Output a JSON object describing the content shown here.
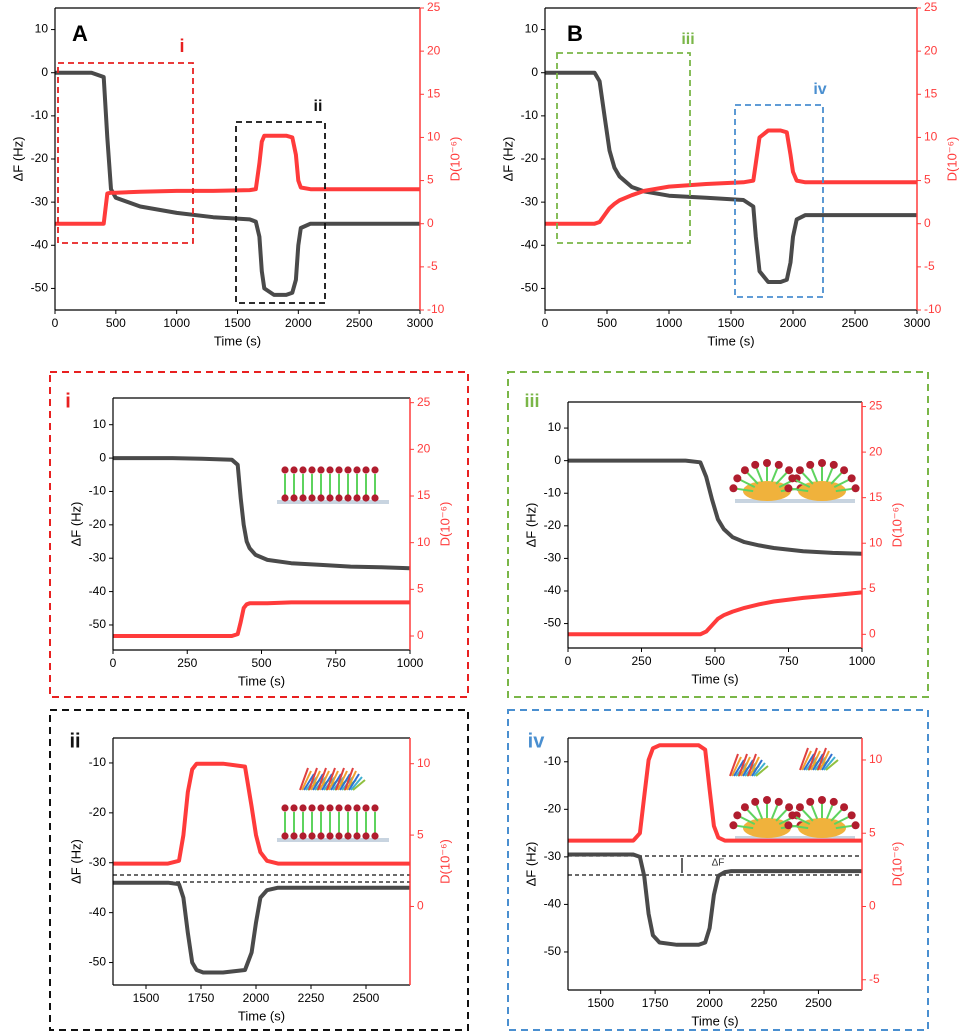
{
  "chart_data": [
    {
      "type": "line",
      "xlabel": "Time (s)",
      "ylabel": "ΔF (Hz)",
      "y2label": "D(10⁻⁶)",
      "x": [
        0,
        100,
        200,
        300,
        400,
        430,
        460,
        500,
        700,
        1000,
        1300,
        1600,
        1650,
        1680,
        1700,
        1720,
        1800,
        1900,
        1950,
        1980,
        2000,
        2020,
        2100,
        2500,
        3000
      ],
      "series": [
        {
          "color": "#4a4a4a",
          "values": [
            0,
            0,
            0,
            0,
            -1,
            -15,
            -27,
            -29,
            -31,
            -32.5,
            -33.5,
            -34,
            -34.5,
            -38,
            -46,
            -50,
            -51.5,
            -51.5,
            -51,
            -48,
            -40,
            -36,
            -35,
            -35,
            -35
          ]
        },
        {
          "color": "#ff3b3b",
          "axis": "y2",
          "values": [
            0,
            0,
            0,
            0,
            0,
            3.5,
            3.6,
            3.6,
            3.7,
            3.8,
            3.8,
            3.9,
            4,
            7,
            9.5,
            10.2,
            10.2,
            10.2,
            10,
            8,
            5,
            4.2,
            4,
            4,
            4
          ]
        }
      ],
      "xlim": [
        0,
        3000
      ],
      "ylim": [
        -55,
        15
      ],
      "y2lim": [
        -10,
        25
      ],
      "xticks": [
        0,
        500,
        1000,
        1500,
        2000,
        2500,
        3000
      ],
      "yticks": [
        -50,
        -40,
        -30,
        -20,
        -10,
        0,
        10
      ],
      "y2ticks": [
        -10,
        -5,
        0,
        5,
        10,
        15,
        20,
        25
      ],
      "annotations": [
        {
          "text": "A",
          "color": "#000000"
        },
        {
          "text": "i",
          "color": "#e82020"
        },
        {
          "text": "ii",
          "color": "#111111"
        }
      ]
    },
    {
      "type": "line",
      "xlabel": "Time (s)",
      "ylabel": "ΔF (Hz)",
      "y2label": "D(10⁻⁶)",
      "x": [
        0,
        100,
        200,
        300,
        400,
        440,
        480,
        520,
        560,
        600,
        700,
        800,
        1000,
        1300,
        1600,
        1680,
        1700,
        1730,
        1800,
        1900,
        1950,
        1980,
        2000,
        2030,
        2100,
        2500,
        3000
      ],
      "series": [
        {
          "color": "#4a4a4a",
          "values": [
            0,
            0,
            0,
            0,
            0,
            -2,
            -10,
            -18,
            -22,
            -24,
            -26.5,
            -27.5,
            -28.5,
            -29,
            -29.5,
            -31,
            -38,
            -46,
            -48.5,
            -48.5,
            -48,
            -44,
            -38,
            -34,
            -33,
            -33,
            -33
          ]
        },
        {
          "color": "#ff3b3b",
          "axis": "y2",
          "values": [
            0,
            0,
            0,
            0,
            0,
            0.2,
            1,
            1.8,
            2.3,
            2.7,
            3.3,
            3.8,
            4.3,
            4.6,
            4.8,
            5,
            7,
            10,
            10.8,
            10.8,
            10.6,
            8,
            6,
            5,
            4.8,
            4.8,
            4.8
          ]
        }
      ],
      "xlim": [
        0,
        3000
      ],
      "ylim": [
        -55,
        15
      ],
      "y2lim": [
        -10,
        25
      ],
      "xticks": [
        0,
        500,
        1000,
        1500,
        2000,
        2500,
        3000
      ],
      "yticks": [
        -50,
        -40,
        -30,
        -20,
        -10,
        0,
        10
      ],
      "y2ticks": [
        -10,
        -5,
        0,
        5,
        10,
        15,
        20,
        25
      ],
      "annotations": [
        {
          "text": "B",
          "color": "#000000"
        },
        {
          "text": "iii",
          "color": "#7ab648"
        },
        {
          "text": "iv",
          "color": "#4a8fd0"
        }
      ]
    },
    {
      "type": "line",
      "xlabel": "Time (s)",
      "ylabel": "ΔF (Hz)",
      "y2label": "D(10⁻⁶)",
      "x": [
        0,
        100,
        200,
        300,
        400,
        420,
        430,
        440,
        450,
        460,
        480,
        520,
        600,
        700,
        800,
        900,
        1000
      ],
      "series": [
        {
          "color": "#4a4a4a",
          "values": [
            0,
            0,
            0,
            -0.2,
            -0.5,
            -2,
            -12,
            -20,
            -25,
            -27,
            -29,
            -30.5,
            -31.5,
            -32,
            -32.5,
            -32.7,
            -33
          ]
        },
        {
          "color": "#ff3b3b",
          "axis": "y2",
          "values": [
            0,
            0,
            0,
            0,
            0,
            0.2,
            1.5,
            3,
            3.4,
            3.5,
            3.5,
            3.5,
            3.6,
            3.6,
            3.6,
            3.6,
            3.6
          ]
        }
      ],
      "xlim": [
        0,
        1000
      ],
      "ylim": [
        -57.5,
        18
      ],
      "y2lim": [
        -1.5,
        25.5
      ],
      "xticks": [
        0,
        250,
        500,
        750,
        1000
      ],
      "yticks": [
        -50,
        -40,
        -30,
        -20,
        -10,
        0,
        10
      ],
      "y2ticks": [
        0,
        5,
        10,
        15,
        20,
        25
      ],
      "annotations": [
        {
          "text": "i",
          "color": "#e82020"
        }
      ]
    },
    {
      "type": "line",
      "xlabel": "Time (s)",
      "ylabel": "ΔF (Hz)",
      "y2label": "D(10⁻⁶)",
      "x": [
        0,
        100,
        200,
        300,
        400,
        450,
        470,
        490,
        510,
        530,
        560,
        600,
        650,
        700,
        800,
        900,
        1000
      ],
      "series": [
        {
          "color": "#4a4a4a",
          "values": [
            0,
            0,
            0,
            0,
            0,
            -0.5,
            -5,
            -12,
            -18,
            -21,
            -23.5,
            -25,
            -26,
            -26.8,
            -27.8,
            -28.3,
            -28.6
          ]
        },
        {
          "color": "#ff3b3b",
          "axis": "y2",
          "values": [
            0,
            0,
            0,
            0,
            0,
            0,
            0.3,
            1,
            1.7,
            2.1,
            2.5,
            2.9,
            3.3,
            3.6,
            4,
            4.3,
            4.6
          ]
        }
      ],
      "xlim": [
        0,
        1000
      ],
      "ylim": [
        -57.5,
        18
      ],
      "y2lim": [
        -1.5,
        25.5
      ],
      "xticks": [
        0,
        250,
        500,
        750,
        1000
      ],
      "yticks": [
        -50,
        -40,
        -30,
        -20,
        -10,
        0,
        10
      ],
      "y2ticks": [
        0,
        5,
        10,
        15,
        20,
        25
      ],
      "annotations": [
        {
          "text": "iii",
          "color": "#7ab648"
        }
      ]
    },
    {
      "type": "line",
      "xlabel": "Time (s)",
      "ylabel": "ΔF (Hz)",
      "y2label": "D(10⁻⁶)",
      "x": [
        1350,
        1500,
        1600,
        1650,
        1670,
        1690,
        1710,
        1730,
        1760,
        1850,
        1950,
        1980,
        2000,
        2020,
        2050,
        2100,
        2300,
        2500,
        2700
      ],
      "series": [
        {
          "color": "#4a4a4a",
          "values": [
            -34,
            -34,
            -34,
            -34.3,
            -37,
            -44,
            -50,
            -51.5,
            -52,
            -52,
            -51.5,
            -48,
            -42,
            -37,
            -35.5,
            -35,
            -35,
            -35,
            -35
          ]
        },
        {
          "color": "#ff3b3b",
          "axis": "y2",
          "values": [
            3,
            3,
            3,
            3.2,
            5,
            8,
            9.6,
            10,
            10,
            10,
            9.8,
            7,
            5,
            3.8,
            3.2,
            3,
            3,
            3,
            3
          ]
        }
      ],
      "xlim": [
        1350,
        2700
      ],
      "ylim": [
        -54.5,
        -5
      ],
      "y2lim": [
        -5.5,
        11.8
      ],
      "xticks": [
        1500,
        1750,
        2000,
        2250,
        2500
      ],
      "yticks": [
        -50,
        -40,
        -30,
        -20,
        -10
      ],
      "y2ticks": [
        0,
        5,
        10
      ],
      "annotations": [
        {
          "text": "ii",
          "color": "#111111"
        }
      ]
    },
    {
      "type": "line",
      "xlabel": "Time (s)",
      "ylabel": "ΔF (Hz)",
      "y2label": "D(10⁻⁶)",
      "x": [
        1350,
        1500,
        1650,
        1680,
        1700,
        1720,
        1740,
        1770,
        1850,
        1950,
        1980,
        2000,
        2020,
        2040,
        2070,
        2100,
        2300,
        2500,
        2700
      ],
      "series": [
        {
          "color": "#4a4a4a",
          "values": [
            -29.5,
            -29.5,
            -29.5,
            -30,
            -34,
            -42,
            -46.5,
            -48,
            -48.5,
            -48.5,
            -48,
            -45,
            -38,
            -34,
            -33.2,
            -33,
            -33,
            -33,
            -33
          ]
        },
        {
          "color": "#ff3b3b",
          "axis": "y2",
          "values": [
            4.5,
            4.5,
            4.5,
            5,
            7.5,
            10,
            10.8,
            11,
            11,
            11,
            10.7,
            8,
            5.5,
            4.7,
            4.5,
            4.5,
            4.5,
            4.5,
            4.5
          ]
        }
      ],
      "xlim": [
        1350,
        2700
      ],
      "ylim": [
        -58,
        -5
      ],
      "y2lim": [
        -5.7,
        11.5
      ],
      "xticks": [
        1500,
        1750,
        2000,
        2250,
        2500
      ],
      "yticks": [
        -50,
        -40,
        -30,
        -20,
        -10
      ],
      "y2ticks": [
        -5,
        0,
        5,
        10
      ],
      "annotations": [
        {
          "text": "iv",
          "color": "#4a8fd0"
        },
        {
          "text": "ΔF",
          "color": "#333333"
        }
      ]
    }
  ]
}
